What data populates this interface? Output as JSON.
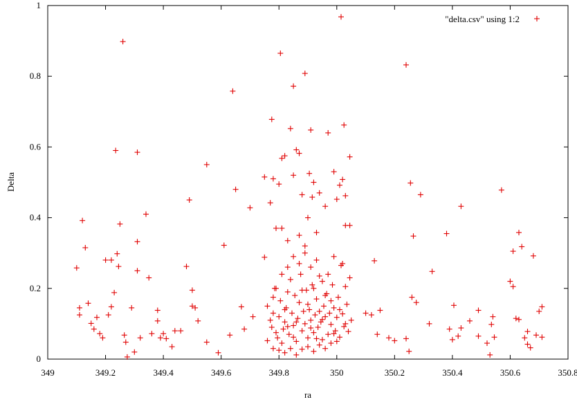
{
  "chart_data": {
    "type": "scatter",
    "title": "",
    "xlabel": "ra",
    "ylabel": "Delta",
    "xlim": [
      349,
      350.8
    ],
    "ylim": [
      0,
      1
    ],
    "x_ticks": [
      "349",
      "349.2",
      "349.4",
      "349.6",
      "349.8",
      "350",
      "350.2",
      "350.4",
      "350.6",
      "350.8"
    ],
    "y_ticks": [
      "0",
      "0.2",
      "0.4",
      "0.6",
      "0.8",
      "1"
    ],
    "grid": false,
    "legend_position": "top-right",
    "series_color": "#e00000",
    "marker": "plus",
    "series": [
      {
        "name": "\"delta.csv\" using 1:2",
        "points": [
          [
            349.1,
            0.258
          ],
          [
            349.11,
            0.145
          ],
          [
            349.11,
            0.125
          ],
          [
            349.12,
            0.392
          ],
          [
            349.13,
            0.315
          ],
          [
            349.14,
            0.158
          ],
          [
            349.15,
            0.101
          ],
          [
            349.16,
            0.085
          ],
          [
            349.17,
            0.118
          ],
          [
            349.18,
            0.072
          ],
          [
            349.19,
            0.06
          ],
          [
            349.2,
            0.28
          ],
          [
            349.21,
            0.125
          ],
          [
            349.22,
            0.28
          ],
          [
            349.22,
            0.148
          ],
          [
            349.23,
            0.188
          ],
          [
            349.235,
            0.59
          ],
          [
            349.24,
            0.298
          ],
          [
            349.245,
            0.262
          ],
          [
            349.25,
            0.382
          ],
          [
            349.26,
            0.898
          ],
          [
            349.265,
            0.068
          ],
          [
            349.27,
            0.048
          ],
          [
            349.275,
            0.006
          ],
          [
            349.29,
            0.145
          ],
          [
            349.3,
            0.02
          ],
          [
            349.31,
            0.585
          ],
          [
            349.31,
            0.332
          ],
          [
            349.31,
            0.25
          ],
          [
            349.32,
            0.06
          ],
          [
            349.34,
            0.41
          ],
          [
            349.35,
            0.23
          ],
          [
            349.36,
            0.072
          ],
          [
            349.38,
            0.138
          ],
          [
            349.38,
            0.108
          ],
          [
            349.39,
            0.06
          ],
          [
            349.4,
            0.072
          ],
          [
            349.41,
            0.058
          ],
          [
            349.43,
            0.035
          ],
          [
            349.44,
            0.08
          ],
          [
            349.46,
            0.08
          ],
          [
            349.48,
            0.262
          ],
          [
            349.49,
            0.45
          ],
          [
            349.5,
            0.195
          ],
          [
            349.5,
            0.15
          ],
          [
            349.51,
            0.145
          ],
          [
            349.52,
            0.108
          ],
          [
            349.55,
            0.55
          ],
          [
            349.55,
            0.048
          ],
          [
            349.59,
            0.018
          ],
          [
            349.61,
            0.322
          ],
          [
            349.63,
            0.068
          ],
          [
            349.64,
            0.758
          ],
          [
            349.65,
            0.48
          ],
          [
            349.67,
            0.148
          ],
          [
            349.68,
            0.085
          ],
          [
            349.7,
            0.428
          ],
          [
            349.71,
            0.12
          ],
          [
            349.75,
            0.515
          ],
          [
            349.75,
            0.288
          ],
          [
            349.76,
            0.052
          ],
          [
            349.77,
            0.442
          ],
          [
            349.775,
            0.678
          ],
          [
            349.78,
            0.51
          ],
          [
            349.79,
            0.37
          ],
          [
            349.8,
            0.495
          ],
          [
            349.805,
            0.865
          ],
          [
            349.81,
            0.568
          ],
          [
            349.81,
            0.37
          ],
          [
            349.82,
            0.575
          ],
          [
            349.83,
            0.335
          ],
          [
            349.84,
            0.652
          ],
          [
            349.85,
            0.52
          ],
          [
            349.85,
            0.772
          ],
          [
            349.86,
            0.592
          ],
          [
            349.87,
            0.582
          ],
          [
            349.88,
            0.465
          ],
          [
            349.89,
            0.808
          ],
          [
            349.89,
            0.32
          ],
          [
            349.9,
            0.4
          ],
          [
            349.905,
            0.525
          ],
          [
            349.91,
            0.648
          ],
          [
            349.915,
            0.458
          ],
          [
            349.92,
            0.5
          ],
          [
            349.93,
            0.358
          ],
          [
            349.94,
            0.47
          ],
          [
            349.96,
            0.432
          ],
          [
            349.97,
            0.64
          ],
          [
            349.99,
            0.53
          ],
          [
            350.0,
            0.452
          ],
          [
            350.01,
            0.492
          ],
          [
            350.015,
            0.968
          ],
          [
            350.02,
            0.508
          ],
          [
            350.025,
            0.662
          ],
          [
            350.03,
            0.462
          ],
          [
            350.03,
            0.378
          ],
          [
            350.045,
            0.572
          ],
          [
            350.045,
            0.378
          ],
          [
            350.1,
            0.13
          ],
          [
            350.12,
            0.125
          ],
          [
            350.13,
            0.278
          ],
          [
            350.14,
            0.07
          ],
          [
            350.15,
            0.138
          ],
          [
            350.18,
            0.06
          ],
          [
            350.2,
            0.052
          ],
          [
            350.24,
            0.832
          ],
          [
            350.24,
            0.058
          ],
          [
            350.25,
            0.022
          ],
          [
            350.255,
            0.498
          ],
          [
            350.26,
            0.175
          ],
          [
            350.265,
            0.348
          ],
          [
            350.275,
            0.16
          ],
          [
            350.29,
            0.465
          ],
          [
            350.32,
            0.1
          ],
          [
            350.33,
            0.248
          ],
          [
            350.38,
            0.355
          ],
          [
            350.39,
            0.085
          ],
          [
            350.4,
            0.055
          ],
          [
            350.405,
            0.152
          ],
          [
            350.42,
            0.065
          ],
          [
            350.43,
            0.432
          ],
          [
            350.43,
            0.088
          ],
          [
            350.46,
            0.108
          ],
          [
            350.49,
            0.138
          ],
          [
            350.49,
            0.065
          ],
          [
            350.52,
            0.045
          ],
          [
            350.53,
            0.012
          ],
          [
            350.535,
            0.098
          ],
          [
            350.54,
            0.12
          ],
          [
            350.545,
            0.062
          ],
          [
            350.57,
            0.478
          ],
          [
            350.6,
            0.22
          ],
          [
            350.61,
            0.305
          ],
          [
            350.61,
            0.205
          ],
          [
            350.62,
            0.115
          ],
          [
            350.63,
            0.112
          ],
          [
            350.63,
            0.358
          ],
          [
            350.64,
            0.318
          ],
          [
            350.65,
            0.06
          ],
          [
            350.66,
            0.042
          ],
          [
            350.66,
            0.078
          ],
          [
            350.67,
            0.032
          ],
          [
            350.68,
            0.292
          ],
          [
            350.69,
            0.068
          ],
          [
            350.7,
            0.135
          ],
          [
            350.71,
            0.148
          ],
          [
            350.71,
            0.062
          ],
          [
            349.76,
            0.15
          ],
          [
            349.77,
            0.11
          ],
          [
            349.775,
            0.09
          ],
          [
            349.78,
            0.13
          ],
          [
            349.785,
            0.2
          ],
          [
            349.79,
            0.075
          ],
          [
            349.795,
            0.06
          ],
          [
            349.8,
            0.12
          ],
          [
            349.805,
            0.165
          ],
          [
            349.81,
            0.045
          ],
          [
            349.815,
            0.085
          ],
          [
            349.82,
            0.105
          ],
          [
            349.825,
            0.145
          ],
          [
            349.83,
            0.19
          ],
          [
            349.835,
            0.07
          ],
          [
            349.84,
            0.225
          ],
          [
            349.845,
            0.13
          ],
          [
            349.85,
            0.095
          ],
          [
            349.855,
            0.18
          ],
          [
            349.86,
            0.05
          ],
          [
            349.865,
            0.115
          ],
          [
            349.87,
            0.16
          ],
          [
            349.875,
            0.24
          ],
          [
            349.88,
            0.08
          ],
          [
            349.885,
            0.135
          ],
          [
            349.89,
            0.1
          ],
          [
            349.895,
            0.195
          ],
          [
            349.9,
            0.06
          ],
          [
            349.905,
            0.14
          ],
          [
            349.91,
            0.11
          ],
          [
            349.915,
            0.21
          ],
          [
            349.92,
            0.075
          ],
          [
            349.925,
            0.125
          ],
          [
            349.93,
            0.17
          ],
          [
            349.935,
            0.09
          ],
          [
            349.94,
            0.235
          ],
          [
            349.945,
            0.105
          ],
          [
            349.95,
            0.055
          ],
          [
            349.955,
            0.15
          ],
          [
            349.96,
            0.12
          ],
          [
            349.965,
            0.185
          ],
          [
            349.97,
            0.07
          ],
          [
            349.975,
            0.13
          ],
          [
            349.98,
            0.098
          ],
          [
            349.985,
            0.21
          ],
          [
            349.99,
            0.145
          ],
          [
            349.995,
            0.08
          ],
          [
            350.0,
            0.118
          ],
          [
            350.005,
            0.175
          ],
          [
            350.01,
            0.062
          ],
          [
            350.015,
            0.265
          ],
          [
            350.02,
            0.128
          ],
          [
            350.025,
            0.092
          ],
          [
            350.03,
            0.205
          ],
          [
            350.035,
            0.155
          ],
          [
            350.04,
            0.078
          ],
          [
            350.045,
            0.23
          ],
          [
            350.05,
            0.11
          ],
          [
            349.78,
            0.03
          ],
          [
            349.8,
            0.025
          ],
          [
            349.82,
            0.018
          ],
          [
            349.84,
            0.03
          ],
          [
            349.86,
            0.012
          ],
          [
            349.88,
            0.028
          ],
          [
            349.9,
            0.035
          ],
          [
            349.92,
            0.022
          ],
          [
            349.94,
            0.04
          ],
          [
            349.96,
            0.03
          ],
          [
            349.98,
            0.045
          ],
          [
            350.0,
            0.05
          ],
          [
            349.79,
            0.2
          ],
          [
            349.81,
            0.24
          ],
          [
            349.83,
            0.26
          ],
          [
            349.85,
            0.29
          ],
          [
            349.87,
            0.27
          ],
          [
            349.89,
            0.3
          ],
          [
            349.91,
            0.26
          ],
          [
            349.93,
            0.28
          ],
          [
            349.95,
            0.22
          ],
          [
            349.97,
            0.24
          ],
          [
            349.99,
            0.29
          ],
          [
            350.02,
            0.27
          ],
          [
            349.78,
            0.175
          ],
          [
            349.82,
            0.14
          ],
          [
            349.86,
            0.105
          ],
          [
            349.9,
            0.155
          ],
          [
            349.94,
            0.135
          ],
          [
            349.98,
            0.165
          ],
          [
            350.03,
            0.1
          ],
          [
            349.87,
            0.35
          ],
          [
            349.83,
            0.092
          ],
          [
            349.91,
            0.088
          ],
          [
            349.95,
            0.112
          ],
          [
            349.99,
            0.072
          ],
          [
            349.88,
            0.195
          ],
          [
            349.92,
            0.2
          ],
          [
            349.96,
            0.18
          ],
          [
            350.01,
            0.14
          ],
          [
            349.85,
            0.062
          ],
          [
            349.93,
            0.058
          ]
        ]
      }
    ]
  }
}
